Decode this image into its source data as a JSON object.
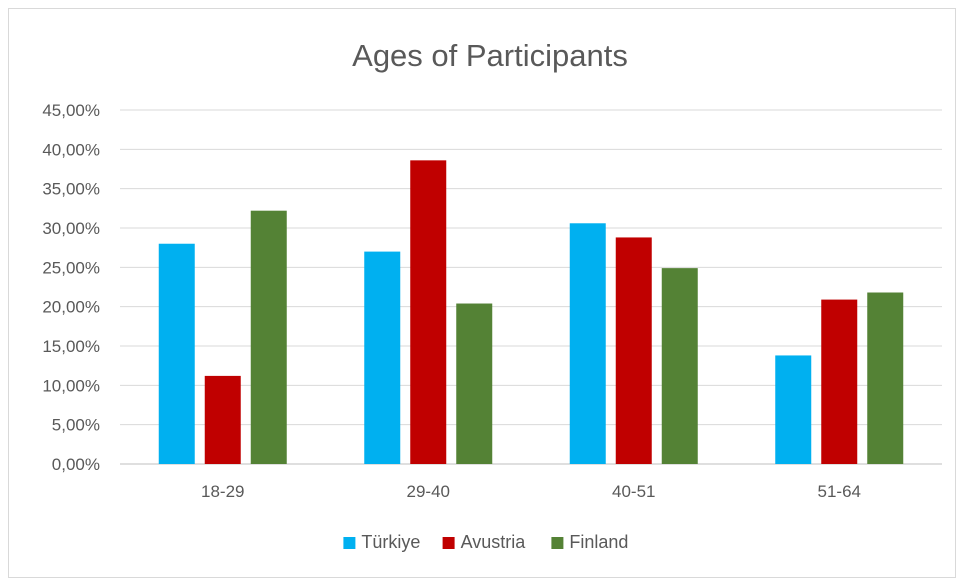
{
  "chart_data": {
    "type": "bar",
    "title": "Ages of Participants",
    "categories": [
      "18-29",
      "29-40",
      "40-51",
      "51-64"
    ],
    "series": [
      {
        "name": "Türkiye",
        "color": "#00b0f0",
        "values": [
          28.0,
          27.0,
          30.6,
          13.8
        ]
      },
      {
        "name": "Avustria",
        "color": "#c00000",
        "values": [
          11.2,
          38.6,
          28.8,
          20.9
        ]
      },
      {
        "name": "Finland",
        "color": "#548235",
        "values": [
          32.2,
          20.4,
          24.9,
          21.8
        ]
      }
    ],
    "ylim": [
      0,
      45
    ],
    "yticks": [
      "0,00%",
      "5,00%",
      "10,00%",
      "15,00%",
      "20,00%",
      "25,00%",
      "30,00%",
      "35,00%",
      "40,00%",
      "45,00%"
    ],
    "grid": true,
    "legend_position": "bottom"
  }
}
